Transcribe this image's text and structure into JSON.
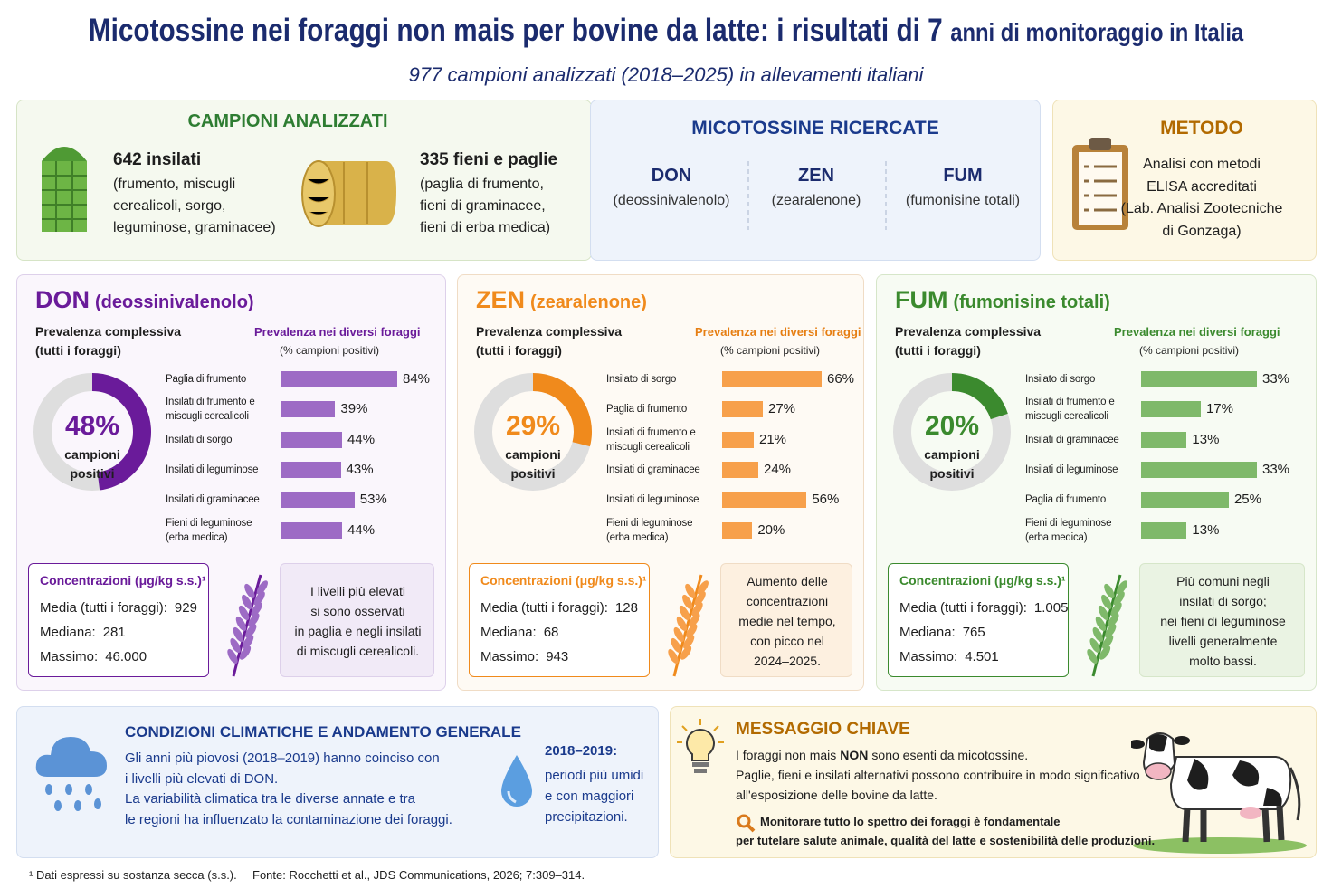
{
  "header": {
    "title": "Micotossine nei foraggi non mais per bovine da latte: i risultati di 7",
    "title_small": "anni di monitoraggio in Italia",
    "subtitle": "977 campioni analizzati (2018–2025) in allevamenti italiani"
  },
  "samples": {
    "title": "CAMPIONI ANALIZZATI",
    "items": [
      {
        "heading": "642 insilati",
        "lines": [
          "(frumento, miscugli",
          "cerealicoli, sorgo,",
          "leguminose, graminacee)"
        ]
      },
      {
        "heading": "335 fieni e paglie",
        "lines": [
          "(paglia di frumento,",
          "fieni di graminacee,",
          "fieni di erba medica)"
        ]
      }
    ]
  },
  "mycotoxins": {
    "title": "MICOTOSSINE RICERCATE",
    "items": [
      {
        "code": "DON",
        "name": "(deossinivalenolo)"
      },
      {
        "code": "ZEN",
        "name": "(zearalenone)"
      },
      {
        "code": "FUM",
        "name": "(fumonisine totali)"
      }
    ]
  },
  "method": {
    "title": "METODO",
    "lines": [
      "Analisi con metodi",
      "ELISA accreditati",
      "(Lab. Analisi Zootecniche",
      "di Gonzaga)"
    ]
  },
  "panels": [
    {
      "code": "DON",
      "name": "(deossinivalenolo)",
      "conc_title": "Concentrazioni (μg/kg s.s.)¹",
      "conc_rows": [
        {
          "label": "Media (tutti i foraggi):",
          "value": "929"
        },
        {
          "label": "Mediana:",
          "value": "281"
        },
        {
          "label": "Massimo:",
          "value": "46.000"
        }
      ],
      "note": [
        "I livelli più elevati",
        "si sono osservati",
        "in paglia e negli insilati",
        "di miscugli cerealicoli."
      ]
    },
    {
      "code": "ZEN",
      "name": "(zearalenone)",
      "conc_title": "Concentrazioni (μg/kg s.s.)¹",
      "conc_rows": [
        {
          "label": "Media (tutti i foraggi):",
          "value": "128"
        },
        {
          "label": "Mediana:",
          "value": "68"
        },
        {
          "label": "Massimo:",
          "value": "943"
        }
      ],
      "note": [
        "Aumento delle",
        "concentrazioni",
        "medie nel tempo,",
        "con picco nel",
        "2024–2025."
      ]
    },
    {
      "code": "FUM",
      "name": "(fumonisine totali)",
      "conc_title": "Concentrazioni (μg/kg s.s.)¹",
      "conc_rows": [
        {
          "label": "Media (tutti i foraggi):",
          "value": "1.005"
        },
        {
          "label": "Mediana:",
          "value": "765"
        },
        {
          "label": "Massimo:",
          "value": "4.501"
        }
      ],
      "note": [
        "Più comuni negli",
        "insilati di sorgo;",
        "nei fieni di leguminose",
        "livelli generalmente",
        "molto bassi."
      ]
    }
  ],
  "chart_data": [
    {
      "type": "donut",
      "title": "Prevalenza complessiva",
      "subtitle": "(tutti i foraggi)",
      "values": [
        48
      ],
      "value_labels": [
        "48%"
      ],
      "center_label": [
        "campioni",
        "positivi"
      ],
      "color": "#6a1b9a"
    },
    {
      "type": "hbar",
      "title": "Prevalenza nei diversi foraggi",
      "subtitle": "(% campioni positivi)",
      "color": "#9d6bc5",
      "categories": [
        "Paglia di frumento",
        "Insilati di frumento e miscugli cerealicoli",
        "Insilati di sorgo",
        "Insilati di leguminose",
        "Insilati di graminacee",
        "Fieni di leguminose (erba medica)"
      ],
      "values": [
        84,
        39,
        44,
        43,
        53,
        44
      ],
      "value_labels": [
        "84%",
        "39%",
        "44%",
        "43%",
        "53%",
        "44%"
      ]
    },
    {
      "type": "donut",
      "title": "Prevalenza complessiva",
      "subtitle": "(tutti i foraggi)",
      "values": [
        29
      ],
      "value_labels": [
        "29%"
      ],
      "center_label": [
        "campioni",
        "positivi"
      ],
      "color": "#f08a1c"
    },
    {
      "type": "hbar",
      "title": "Prevalenza nei diversi foraggi",
      "subtitle": "(% campioni positivi)",
      "color": "#f7a04b",
      "categories": [
        "Insilato di sorgo",
        "Paglia di frumento",
        "Insilati di frumento e miscugli cerealicoli",
        "Insilati di graminacee",
        "Insilati di leguminose",
        "Fieni di leguminose (erba medica)"
      ],
      "values": [
        66,
        27,
        21,
        24,
        56,
        20
      ],
      "value_labels": [
        "66%",
        "27%",
        "21%",
        "24%",
        "56%",
        "20%"
      ]
    },
    {
      "type": "donut",
      "title": "Prevalenza complessiva",
      "subtitle": "(tutti i foraggi)",
      "values": [
        20
      ],
      "value_labels": [
        "20%"
      ],
      "center_label": [
        "campioni",
        "positivi"
      ],
      "color": "#3b8a2e"
    },
    {
      "type": "hbar",
      "title": "Prevalenza nei diversi foraggi",
      "subtitle": "(% campioni positivi)",
      "color": "#7fb96a",
      "categories": [
        "Insilato di sorgo",
        "Insilati di frumento e miscugli cerealicoli",
        "Insilati di graminacee",
        "Insilati di leguminose",
        "Paglia di frumento",
        "Fieni di leguminose (erba medica)"
      ],
      "values": [
        33,
        17,
        13,
        33,
        25,
        13
      ],
      "value_labels": [
        "33%",
        "17%",
        "13%",
        "33%",
        "25%",
        "13%"
      ]
    }
  ],
  "climate": {
    "title": "CONDIZIONI CLIMATICHE E ANDAMENTO GENERALE",
    "lines": [
      "Gli anni più piovosi (2018–2019) hanno coinciso con",
      "i livelli più elevati di DON.",
      "La variabilità climatica tra le diverse annate e tra",
      "le regioni ha influenzato la contaminazione dei foraggi."
    ],
    "side_title": "2018–2019:",
    "side_lines": [
      "periodi più umidi",
      "e con maggiori",
      "precipitazioni."
    ]
  },
  "key_message": {
    "title": "MESSAGGIO CHIAVE",
    "line1_start": "I foraggi non mais",
    "line1_bold": "NON",
    "line1_end": "sono esenti da micotossine.",
    "body": [
      "Paglie, fieni e insilati alternativi possono contribuire in modo significativo",
      "all'esposizione delle bovine da latte."
    ],
    "highlight": [
      "Monitorare tutto lo spettro dei foraggi è fondamentale",
      "per tutelare salute animale, qualità del latte e sostenibilità delle produzioni."
    ]
  },
  "footer": {
    "note": "¹ Dati espressi su sostanza secca (s.s.).",
    "source": "Fonte: Rocchetti et al., JDS Communications, 2026; 7:309–314."
  }
}
